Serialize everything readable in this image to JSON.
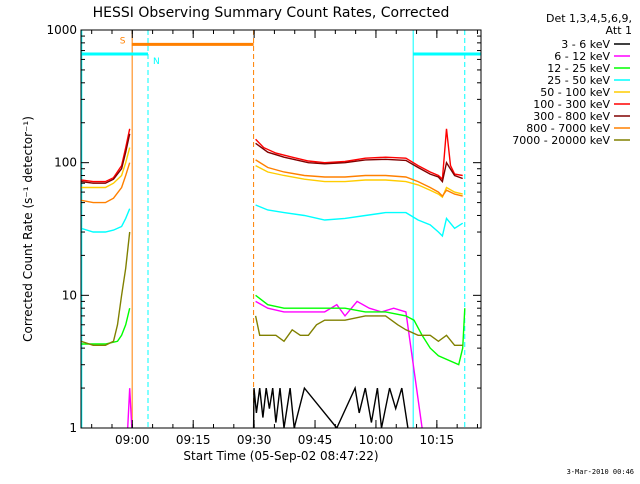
{
  "chart_data": {
    "type": "line",
    "title": "HESSI Observing Summary Count Rates, Corrected",
    "xlabel": "Start Time (05-Sep-02 08:47:22)",
    "ylabel": "Corrected Count Rate (s⁻¹ detector⁻¹)",
    "y_scale": "log",
    "ylim": [
      1,
      1000
    ],
    "xlim_minutes_after_start": [
      0,
      98.5
    ],
    "y_ticks": [
      "1",
      "10",
      "100",
      "1000"
    ],
    "x_ticks": [
      {
        "t": 12.63,
        "label": "09:00"
      },
      {
        "t": 27.63,
        "label": "09:15"
      },
      {
        "t": 42.63,
        "label": "09:30"
      },
      {
        "t": 57.63,
        "label": "09:45"
      },
      {
        "t": 72.63,
        "label": "10:00"
      },
      {
        "t": 87.63,
        "label": "10:15"
      }
    ],
    "legend_header": [
      "Det 1,3,4,5,6,9,",
      "Att 1"
    ],
    "legend_position": "right",
    "series": [
      {
        "name": "3 - 6 keV",
        "color": "#000000",
        "points": [
          [
            42.5,
            1
          ],
          [
            42.6,
            2
          ],
          [
            43.2,
            1.3
          ],
          [
            44,
            2
          ],
          [
            44.8,
            1.2
          ],
          [
            45.6,
            2
          ],
          [
            46.4,
            1.4
          ],
          [
            47.2,
            2
          ],
          [
            48,
            1.1
          ],
          [
            49,
            2
          ],
          [
            50,
            1
          ],
          [
            51.5,
            2
          ],
          [
            52.5,
            1
          ],
          [
            55,
            2
          ],
          [
            63,
            1
          ],
          [
            67.5,
            2
          ],
          [
            68.5,
            1.3
          ],
          [
            70,
            2
          ],
          [
            71.5,
            1.1
          ],
          [
            73,
            2
          ],
          [
            74,
            1
          ],
          [
            76,
            2
          ],
          [
            77.5,
            1.4
          ],
          [
            79,
            2
          ],
          [
            80.5,
            1
          ]
        ]
      },
      {
        "name": "6 - 12 keV",
        "color": "#ff00ff",
        "points": [
          [
            11.5,
            1
          ],
          [
            12,
            2
          ],
          [
            12.5,
            1
          ],
          [
            43,
            9
          ],
          [
            46,
            8
          ],
          [
            50,
            7.5
          ],
          [
            55,
            7.5
          ],
          [
            60,
            7.5
          ],
          [
            63,
            8.5
          ],
          [
            65,
            7
          ],
          [
            68,
            9
          ],
          [
            71,
            8
          ],
          [
            74,
            7.5
          ],
          [
            77,
            8
          ],
          [
            80,
            7.5
          ],
          [
            84,
            1
          ]
        ]
      },
      {
        "name": "12 - 25 keV",
        "color": "#00ff00",
        "points": [
          [
            0,
            4.3
          ],
          [
            3,
            4.3
          ],
          [
            6,
            4.3
          ],
          [
            9,
            4.5
          ],
          [
            10,
            5
          ],
          [
            11,
            6
          ],
          [
            12,
            8
          ],
          [
            43,
            10
          ],
          [
            46,
            8.5
          ],
          [
            50,
            8
          ],
          [
            55,
            8
          ],
          [
            60,
            8
          ],
          [
            65,
            8
          ],
          [
            70,
            7.5
          ],
          [
            75,
            7.5
          ],
          [
            80,
            7
          ],
          [
            82,
            6.5
          ],
          [
            84,
            5
          ],
          [
            86,
            4
          ],
          [
            88,
            3.5
          ],
          [
            93,
            3
          ],
          [
            94,
            4
          ],
          [
            94.5,
            8
          ]
        ]
      },
      {
        "name": "25 - 50 keV",
        "color": "#00ffff",
        "points": [
          [
            0,
            32
          ],
          [
            3,
            30
          ],
          [
            6,
            30
          ],
          [
            8,
            31
          ],
          [
            10,
            33
          ],
          [
            11,
            38
          ],
          [
            12,
            45
          ],
          [
            43,
            48
          ],
          [
            46,
            44
          ],
          [
            50,
            42
          ],
          [
            55,
            40
          ],
          [
            60,
            37
          ],
          [
            65,
            38
          ],
          [
            70,
            40
          ],
          [
            75,
            42
          ],
          [
            80,
            42
          ],
          [
            83,
            37
          ],
          [
            86,
            34
          ],
          [
            88,
            30
          ],
          [
            89,
            28
          ],
          [
            90,
            38
          ],
          [
            92,
            32
          ],
          [
            94,
            35
          ]
        ]
      },
      {
        "name": "50 - 100 keV",
        "color": "#ffcc00",
        "points": [
          [
            0,
            65
          ],
          [
            3,
            65
          ],
          [
            6,
            65
          ],
          [
            8,
            70
          ],
          [
            10,
            80
          ],
          [
            11,
            100
          ],
          [
            12,
            130
          ],
          [
            43,
            95
          ],
          [
            46,
            85
          ],
          [
            50,
            80
          ],
          [
            55,
            75
          ],
          [
            60,
            72
          ],
          [
            65,
            72
          ],
          [
            70,
            74
          ],
          [
            75,
            74
          ],
          [
            80,
            72
          ],
          [
            83,
            68
          ],
          [
            86,
            62
          ],
          [
            88,
            58
          ],
          [
            89,
            55
          ],
          [
            90,
            65
          ],
          [
            92,
            60
          ],
          [
            94,
            58
          ]
        ]
      },
      {
        "name": "100 - 300 keV",
        "color": "#ff0000",
        "points": [
          [
            0,
            74
          ],
          [
            3,
            72
          ],
          [
            6,
            72
          ],
          [
            8,
            77
          ],
          [
            10,
            95
          ],
          [
            11,
            130
          ],
          [
            12,
            180
          ],
          [
            43,
            150
          ],
          [
            45,
            130
          ],
          [
            48,
            118
          ],
          [
            52,
            110
          ],
          [
            56,
            103
          ],
          [
            60,
            100
          ],
          [
            65,
            102
          ],
          [
            70,
            108
          ],
          [
            75,
            110
          ],
          [
            80,
            108
          ],
          [
            83,
            95
          ],
          [
            86,
            85
          ],
          [
            88,
            80
          ],
          [
            89,
            75
          ],
          [
            90,
            180
          ],
          [
            91,
            95
          ],
          [
            92,
            82
          ],
          [
            94,
            80
          ]
        ]
      },
      {
        "name": "300 - 800 keV",
        "color": "#800000",
        "points": [
          [
            0,
            72
          ],
          [
            3,
            70
          ],
          [
            6,
            70
          ],
          [
            8,
            75
          ],
          [
            10,
            90
          ],
          [
            11,
            120
          ],
          [
            12,
            165
          ],
          [
            43,
            140
          ],
          [
            46,
            120
          ],
          [
            50,
            110
          ],
          [
            56,
            100
          ],
          [
            60,
            98
          ],
          [
            65,
            100
          ],
          [
            70,
            105
          ],
          [
            75,
            106
          ],
          [
            80,
            104
          ],
          [
            83,
            92
          ],
          [
            86,
            82
          ],
          [
            88,
            78
          ],
          [
            89,
            72
          ],
          [
            90,
            100
          ],
          [
            92,
            80
          ],
          [
            94,
            76
          ]
        ]
      },
      {
        "name": "800 - 7000 keV",
        "color": "#ff8000",
        "points": [
          [
            0,
            52
          ],
          [
            3,
            50
          ],
          [
            6,
            50
          ],
          [
            8,
            54
          ],
          [
            10,
            65
          ],
          [
            11,
            80
          ],
          [
            12,
            100
          ],
          [
            43,
            105
          ],
          [
            46,
            92
          ],
          [
            50,
            85
          ],
          [
            55,
            80
          ],
          [
            60,
            78
          ],
          [
            65,
            78
          ],
          [
            70,
            80
          ],
          [
            75,
            80
          ],
          [
            80,
            78
          ],
          [
            83,
            72
          ],
          [
            86,
            65
          ],
          [
            88,
            60
          ],
          [
            89,
            56
          ],
          [
            90,
            62
          ],
          [
            92,
            58
          ],
          [
            94,
            56
          ]
        ]
      },
      {
        "name": "7000 - 20000 keV",
        "color": "#808000",
        "points": [
          [
            0,
            4.5
          ],
          [
            3,
            4.2
          ],
          [
            6,
            4.2
          ],
          [
            8,
            4.5
          ],
          [
            9,
            6
          ],
          [
            10,
            10
          ],
          [
            11,
            16
          ],
          [
            12,
            30
          ],
          [
            43,
            7
          ],
          [
            44,
            5
          ],
          [
            46,
            5
          ],
          [
            48,
            5
          ],
          [
            50,
            4.5
          ],
          [
            52,
            5.5
          ],
          [
            54,
            5
          ],
          [
            56,
            5
          ],
          [
            58,
            6
          ],
          [
            60,
            6.5
          ],
          [
            62,
            6.5
          ],
          [
            65,
            6.5
          ],
          [
            70,
            7
          ],
          [
            75,
            7
          ],
          [
            78,
            6
          ],
          [
            80,
            5.5
          ],
          [
            83,
            5
          ],
          [
            86,
            5
          ],
          [
            88,
            4.5
          ],
          [
            90,
            5
          ],
          [
            92,
            4.2
          ],
          [
            94,
            4.2
          ]
        ]
      }
    ],
    "annotations": [
      {
        "label": "S",
        "color": "#ff8000",
        "t_start": 12.5,
        "t_end": 42.5,
        "level": 780
      },
      {
        "label": "N",
        "color": "#00ffff",
        "t_start": 0,
        "t_end": 16.5,
        "level": 660
      },
      {
        "label": "",
        "color": "#00ffff",
        "t_start": 81.8,
        "t_end": 98.5,
        "level": 660
      }
    ],
    "vertical_markers": [
      {
        "t": 12.6,
        "color": "#ff8000",
        "style": "solid"
      },
      {
        "t": 16.5,
        "color": "#00ffff",
        "style": "dashed"
      },
      {
        "t": 42.5,
        "color": "#ff8000",
        "style": "dashed"
      },
      {
        "t": 81.8,
        "color": "#00ffff",
        "style": "solid"
      },
      {
        "t": 94.5,
        "color": "#00ffff",
        "style": "dashed"
      },
      {
        "t": 0.2,
        "color": "#00ffff",
        "style": "solid"
      }
    ]
  },
  "footer": {
    "timestamp": "3-Mar-2010 00:46"
  }
}
